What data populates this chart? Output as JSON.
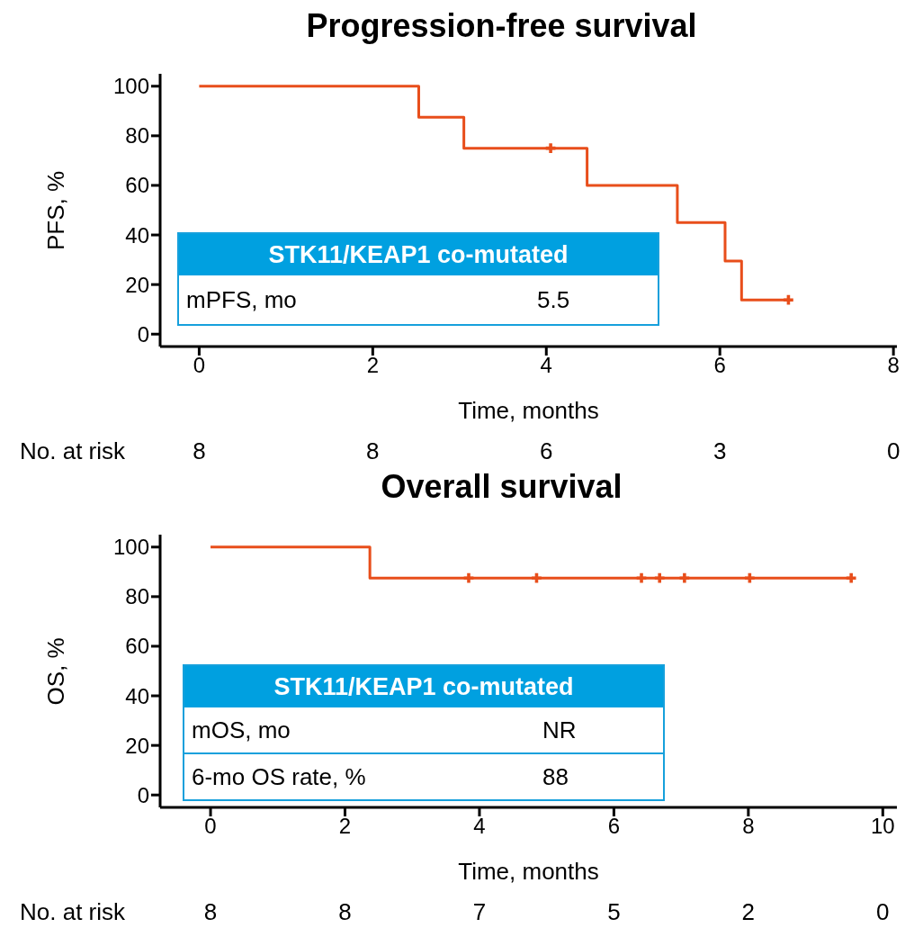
{
  "chart_data": [
    {
      "type": "step",
      "title": "Progression-free survival",
      "xlabel": "Time, months",
      "ylabel": "PFS, %",
      "xlim": [
        -0.45,
        8.04
      ],
      "ylim": [
        -5,
        105
      ],
      "xticks": [
        0,
        2,
        4,
        6,
        8
      ],
      "yticks": [
        0,
        20,
        40,
        60,
        80,
        100
      ],
      "grid": false,
      "legend": false,
      "line_style": "solid",
      "series": [
        {
          "color": "#e84e1b",
          "marker": "none",
          "x": [
            0,
            2.53,
            3.05,
            4.47,
            5.51,
            6.06,
            6.25,
            6.79
          ],
          "values": [
            100,
            87.5,
            75,
            60,
            45,
            29.5,
            13.8,
            13.8
          ]
        },
        {
          "type": "scatter",
          "color": "#e84e1b",
          "marker": "cross",
          "x": [
            4.05,
            6.79
          ],
          "values": [
            75,
            13.8
          ]
        }
      ],
      "annotations": [
        "No. at risk",
        "8",
        "8",
        "6",
        "3",
        "0",
        "STK11/KEAP1 co-mutated",
        "mPFS, mo",
        "5.5"
      ]
    },
    {
      "type": "step",
      "title": "Overall survival",
      "xlabel": "Time, months",
      "ylabel": "OS, %",
      "xlim": [
        -0.75,
        10.21
      ],
      "ylim": [
        -5,
        105
      ],
      "xticks": [
        0,
        2,
        4,
        6,
        8,
        10
      ],
      "yticks": [
        0,
        20,
        40,
        60,
        80,
        100
      ],
      "grid": false,
      "legend": false,
      "line_style": "solid",
      "series": [
        {
          "color": "#e84e1b",
          "marker": "none",
          "x": [
            0,
            2.37,
            9.53
          ],
          "values": [
            100,
            87.5,
            87.5
          ]
        },
        {
          "type": "scatter",
          "color": "#e84e1b",
          "marker": "cross",
          "x": [
            3.84,
            4.85,
            6.41,
            6.68,
            7.05,
            8.02,
            9.53
          ],
          "values": [
            87.5,
            87.5,
            87.5,
            87.5,
            87.5,
            87.5,
            87.5
          ]
        }
      ],
      "annotations": [
        "No. at risk",
        "8",
        "8",
        "7",
        "5",
        "2",
        "0",
        "STK11/KEAP1 co-mutated",
        "mOS, mo",
        "NR",
        "6-mo OS rate, %",
        "88"
      ]
    }
  ]
}
